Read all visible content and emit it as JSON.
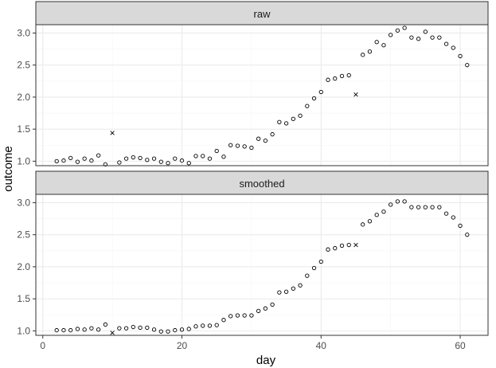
{
  "chart_data": [
    {
      "type": "scatter",
      "panel_label": "raw",
      "xlabel": "day",
      "ylabel": "outcome",
      "xlim": [
        -1,
        64
      ],
      "ylim": [
        0.93,
        3.13
      ],
      "x_ticks": [
        0,
        20,
        40,
        60
      ],
      "y_ticks": [
        1.0,
        1.5,
        2.0,
        2.5,
        3.0
      ],
      "tick_labels_x": [
        "0",
        "20",
        "40",
        "60"
      ],
      "tick_labels_y": [
        "1.0",
        "1.5",
        "2.0",
        "2.5",
        "3.0"
      ],
      "grid": true,
      "series": [
        {
          "marker": "circle",
          "points": [
            [
              2,
              1.0
            ],
            [
              3,
              1.01
            ],
            [
              4,
              1.05
            ],
            [
              5,
              0.99
            ],
            [
              6,
              1.04
            ],
            [
              7,
              1.01
            ],
            [
              8,
              1.09
            ],
            [
              9,
              0.95
            ],
            [
              11,
              0.98
            ],
            [
              12,
              1.04
            ],
            [
              13,
              1.06
            ],
            [
              14,
              1.05
            ],
            [
              15,
              1.02
            ],
            [
              16,
              1.04
            ],
            [
              17,
              0.99
            ],
            [
              18,
              0.97
            ],
            [
              19,
              1.04
            ],
            [
              20,
              1.01
            ],
            [
              21,
              0.97
            ],
            [
              22,
              1.08
            ],
            [
              23,
              1.08
            ],
            [
              24,
              1.04
            ],
            [
              25,
              1.16
            ],
            [
              26,
              1.07
            ],
            [
              27,
              1.25
            ],
            [
              28,
              1.24
            ],
            [
              29,
              1.23
            ],
            [
              30,
              1.21
            ],
            [
              31,
              1.35
            ],
            [
              32,
              1.32
            ],
            [
              33,
              1.42
            ],
            [
              34,
              1.61
            ],
            [
              35,
              1.59
            ],
            [
              36,
              1.66
            ],
            [
              37,
              1.71
            ],
            [
              38,
              1.86
            ],
            [
              39,
              1.98
            ],
            [
              40,
              2.08
            ],
            [
              41,
              2.27
            ],
            [
              42,
              2.29
            ],
            [
              43,
              2.33
            ],
            [
              44,
              2.34
            ],
            [
              46,
              2.66
            ],
            [
              47,
              2.71
            ],
            [
              48,
              2.86
            ],
            [
              49,
              2.81
            ],
            [
              50,
              2.97
            ],
            [
              51,
              3.04
            ],
            [
              52,
              3.08
            ],
            [
              53,
              2.93
            ],
            [
              54,
              2.91
            ],
            [
              55,
              3.02
            ],
            [
              56,
              2.93
            ],
            [
              57,
              2.93
            ],
            [
              58,
              2.83
            ],
            [
              59,
              2.77
            ],
            [
              60,
              2.64
            ],
            [
              61,
              2.5
            ]
          ]
        },
        {
          "marker": "cross",
          "points": [
            [
              10,
              1.44
            ],
            [
              45,
              2.04
            ]
          ]
        }
      ]
    },
    {
      "type": "scatter",
      "panel_label": "smoothed",
      "xlabel": "day",
      "ylabel": "outcome",
      "xlim": [
        -1,
        64
      ],
      "ylim": [
        0.93,
        3.13
      ],
      "x_ticks": [
        0,
        20,
        40,
        60
      ],
      "y_ticks": [
        1.0,
        1.5,
        2.0,
        2.5,
        3.0
      ],
      "tick_labels_x": [
        "0",
        "20",
        "40",
        "60"
      ],
      "tick_labels_y": [
        "1.0",
        "1.5",
        "2.0",
        "2.5",
        "3.0"
      ],
      "grid": true,
      "series": [
        {
          "marker": "circle",
          "points": [
            [
              2,
              1.01
            ],
            [
              3,
              1.01
            ],
            [
              4,
              1.01
            ],
            [
              5,
              1.03
            ],
            [
              6,
              1.02
            ],
            [
              7,
              1.04
            ],
            [
              8,
              1.02
            ],
            [
              9,
              1.1
            ],
            [
              11,
              1.04
            ],
            [
              12,
              1.04
            ],
            [
              13,
              1.06
            ],
            [
              14,
              1.05
            ],
            [
              15,
              1.05
            ],
            [
              16,
              1.02
            ],
            [
              17,
              0.99
            ],
            [
              18,
              0.99
            ],
            [
              19,
              1.01
            ],
            [
              20,
              1.02
            ],
            [
              21,
              1.03
            ],
            [
              22,
              1.07
            ],
            [
              23,
              1.08
            ],
            [
              24,
              1.08
            ],
            [
              25,
              1.09
            ],
            [
              26,
              1.17
            ],
            [
              27,
              1.23
            ],
            [
              28,
              1.24
            ],
            [
              29,
              1.24
            ],
            [
              30,
              1.24
            ],
            [
              31,
              1.31
            ],
            [
              32,
              1.35
            ],
            [
              33,
              1.41
            ],
            [
              34,
              1.6
            ],
            [
              35,
              1.61
            ],
            [
              36,
              1.66
            ],
            [
              37,
              1.71
            ],
            [
              38,
              1.86
            ],
            [
              39,
              1.98
            ],
            [
              40,
              2.08
            ],
            [
              41,
              2.27
            ],
            [
              42,
              2.29
            ],
            [
              43,
              2.33
            ],
            [
              44,
              2.34
            ],
            [
              46,
              2.66
            ],
            [
              47,
              2.71
            ],
            [
              48,
              2.81
            ],
            [
              49,
              2.86
            ],
            [
              50,
              2.97
            ],
            [
              51,
              3.02
            ],
            [
              52,
              3.02
            ],
            [
              53,
              2.93
            ],
            [
              54,
              2.93
            ],
            [
              55,
              2.93
            ],
            [
              56,
              2.93
            ],
            [
              57,
              2.93
            ],
            [
              58,
              2.83
            ],
            [
              59,
              2.77
            ],
            [
              60,
              2.64
            ],
            [
              61,
              2.5
            ]
          ]
        },
        {
          "marker": "cross",
          "points": [
            [
              10,
              0.97
            ],
            [
              45,
              2.34
            ]
          ]
        }
      ]
    }
  ],
  "style": {
    "strip_fill": "#d9d9d9",
    "strip_border": "#333333",
    "panel_border": "#333333",
    "grid_major": "#ebebeb",
    "grid_minor": "#f5f5f5",
    "marker_color": "#000000",
    "tick_text": "#4d4d4d",
    "axis_title": "#000000"
  }
}
